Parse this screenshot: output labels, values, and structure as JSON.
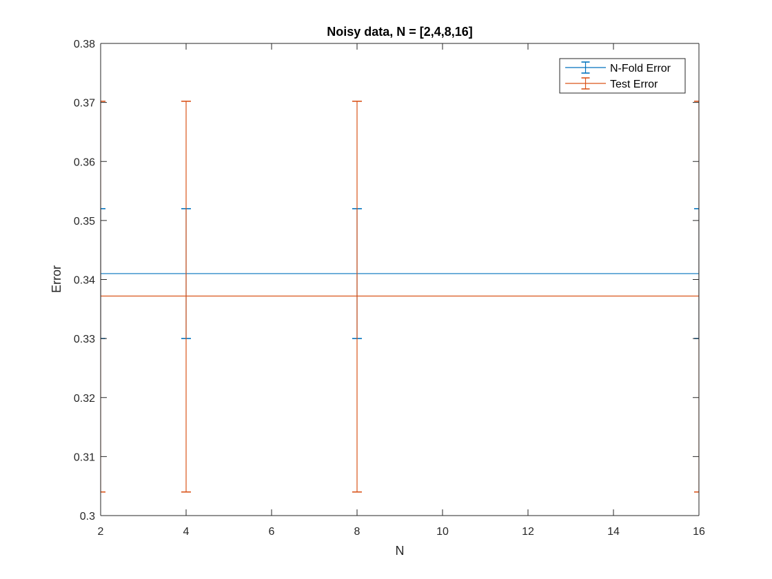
{
  "chart_data": {
    "type": "line",
    "title": "Noisy data, N = [2,4,8,16]",
    "xlabel": "N",
    "ylabel": "Error",
    "xlim": [
      2,
      16
    ],
    "ylim": [
      0.3,
      0.38
    ],
    "xticks": [
      2,
      4,
      6,
      8,
      10,
      12,
      14,
      16
    ],
    "xtick_labels": [
      "2",
      "4",
      "6",
      "8",
      "10",
      "12",
      "14",
      "16"
    ],
    "yticks": [
      0.3,
      0.31,
      0.32,
      0.33,
      0.34,
      0.35,
      0.36,
      0.37,
      0.38
    ],
    "ytick_labels": [
      "0.3",
      "0.31",
      "0.32",
      "0.33",
      "0.34",
      "0.35",
      "0.36",
      "0.37",
      "0.38"
    ],
    "grid": false,
    "legend_position": "top-right",
    "x": [
      2,
      4,
      8,
      16
    ],
    "series": [
      {
        "name": "N-Fold Error",
        "color": "#0072BD",
        "values": [
          0.341,
          0.341,
          0.341,
          0.341
        ],
        "error_lower": [
          0.33,
          0.33,
          0.33,
          0.33
        ],
        "error_upper": [
          0.352,
          0.352,
          0.352,
          0.352
        ]
      },
      {
        "name": "Test Error",
        "color": "#D95319",
        "values": [
          0.3372,
          0.3372,
          0.3372,
          0.3372
        ],
        "error_lower": [
          0.304,
          0.304,
          0.304,
          0.304
        ],
        "error_upper": [
          0.3702,
          0.3702,
          0.3702,
          0.3702
        ]
      }
    ]
  }
}
